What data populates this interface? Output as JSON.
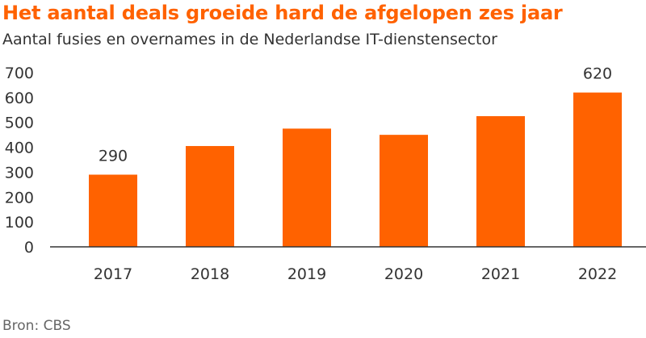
{
  "chart_data": {
    "type": "bar",
    "title": "Het aantal deals groeide hard de afgelopen zes jaar",
    "subtitle": "Aantal fusies en overnames in de Nederlandse IT-dienstensector",
    "source": "Bron: CBS",
    "categories": [
      "2017",
      "2018",
      "2019",
      "2020",
      "2021",
      "2022"
    ],
    "values": [
      290,
      405,
      475,
      450,
      525,
      620
    ],
    "data_labels": [
      "290",
      "",
      "",
      "",
      "",
      "620"
    ],
    "xlabel": "",
    "ylabel": "",
    "ylim": [
      0,
      700
    ],
    "yticks": [
      0,
      100,
      200,
      300,
      400,
      500,
      600,
      700
    ],
    "grid": false,
    "bar_color": "#FF6200",
    "title_color": "#FF6200"
  }
}
